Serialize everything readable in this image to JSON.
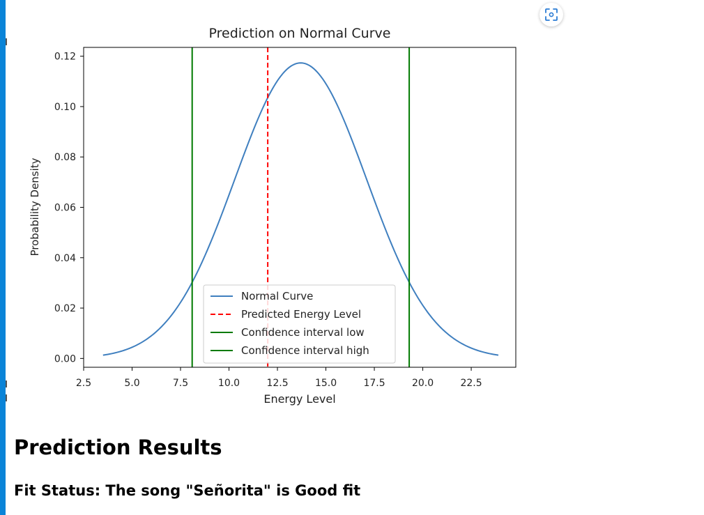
{
  "colors": {
    "curve": "#3f7fbf",
    "predicted": "#ff0000",
    "interval": "#007a00",
    "accent_bar": "#0a84d8"
  },
  "toolbar": {
    "fullscreen_icon": "fullscreen-expand-icon"
  },
  "chart_data": {
    "type": "line",
    "title": "Prediction on Normal Curve",
    "xlabel": "Energy Level",
    "ylabel": "Probability Density",
    "xlim": [
      2.5,
      24.8
    ],
    "ylim": [
      -0.0035,
      0.1235
    ],
    "xticks": [
      2.5,
      5.0,
      7.5,
      10.0,
      12.5,
      15.0,
      17.5,
      20.0,
      22.5
    ],
    "xtick_labels": [
      "2.5",
      "5.0",
      "7.5",
      "10.0",
      "12.5",
      "15.0",
      "17.5",
      "20.0",
      "22.5"
    ],
    "yticks": [
      0.0,
      0.02,
      0.04,
      0.06,
      0.08,
      0.1,
      0.12
    ],
    "ytick_labels": [
      "0.00",
      "0.02",
      "0.04",
      "0.06",
      "0.08",
      "0.10",
      "0.12"
    ],
    "grid": false,
    "legend_position": "lower center",
    "normal_curve": {
      "mean": 13.7,
      "std": 3.4,
      "x_range": [
        3.5,
        23.9
      ]
    },
    "predicted_energy_level": 12.0,
    "confidence_interval": [
      8.1,
      19.3
    ],
    "series": [
      {
        "name": "Normal Curve",
        "style": "solid",
        "color": "#3f7fbf"
      },
      {
        "name": "Predicted Energy Level",
        "style": "dashed",
        "color": "#ff0000"
      },
      {
        "name": "Confidence interval low",
        "style": "solid",
        "color": "#007a00"
      },
      {
        "name": "Confidence interval high",
        "style": "solid",
        "color": "#007a00"
      }
    ]
  },
  "results": {
    "title": "Prediction Results",
    "fit_status": "Fit Status: The song \"Señorita\" is Good fit"
  }
}
